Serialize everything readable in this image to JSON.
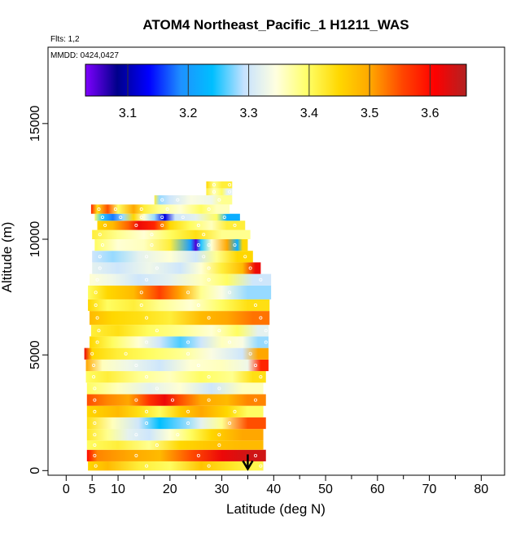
{
  "chart_data": {
    "type": "heatmap",
    "title": "ATOM4 Northeast_Pacific_1 H1211_WAS",
    "flights_note": "Flts: 1,2",
    "mmdd_note": "MMDD: 0424,0427",
    "xlabel": "Latitude (deg N)",
    "ylabel": "Altitude (m)",
    "xlim": [
      -3.5,
      84.5
    ],
    "ylim": [
      -200,
      18300
    ],
    "x_ticks": [
      0,
      5,
      10,
      20,
      30,
      40,
      50,
      60,
      70,
      80
    ],
    "y_ticks": [
      0,
      5000,
      10000,
      15000
    ],
    "colorbar": {
      "range": [
        3.03,
        3.66
      ],
      "ticks": [
        3.1,
        3.2,
        3.3,
        3.4,
        3.5,
        3.6
      ],
      "colors": [
        "#7f00ff",
        "#00008b",
        "#0000ff",
        "#1e90ff",
        "#00bfff",
        "#c6e2ff",
        "#ffffe0",
        "#ffff66",
        "#ffd700",
        "#ffa500",
        "#ff4500",
        "#ff0000",
        "#b22222"
      ]
    },
    "marker": {
      "x": 35,
      "y": 700,
      "label": "arrow-down"
    },
    "rows": [
      {
        "y0": 0,
        "y1": 400,
        "x0": 4.2,
        "x1": 38.0,
        "segs": [
          [
            4.2,
            3.45
          ],
          [
            8,
            3.48
          ],
          [
            14,
            3.42
          ],
          [
            20,
            3.4
          ],
          [
            26,
            3.47
          ],
          [
            32,
            3.43
          ],
          [
            36,
            3.41
          ]
        ]
      },
      {
        "y0": 400,
        "y1": 900,
        "x0": 4.0,
        "x1": 38.5,
        "segs": [
          [
            4.0,
            3.6
          ],
          [
            6,
            3.52
          ],
          [
            12,
            3.5
          ],
          [
            18,
            3.48
          ],
          [
            24,
            3.55
          ],
          [
            30,
            3.62
          ],
          [
            35,
            3.64
          ]
        ]
      },
      {
        "y0": 900,
        "y1": 1300,
        "x0": 4.0,
        "x1": 38.0,
        "segs": [
          [
            4.0,
            3.4
          ],
          [
            10,
            3.42
          ],
          [
            16,
            3.38
          ],
          [
            22,
            3.45
          ],
          [
            28,
            3.47
          ],
          [
            34,
            3.48
          ]
        ]
      },
      {
        "y0": 1300,
        "y1": 1800,
        "x0": 4.0,
        "x1": 38.0,
        "segs": [
          [
            4.0,
            3.43
          ],
          [
            8,
            3.38
          ],
          [
            12,
            3.32
          ],
          [
            16,
            3.3
          ],
          [
            20,
            3.35
          ],
          [
            24,
            3.4
          ],
          [
            28,
            3.45
          ],
          [
            34,
            3.5
          ]
        ]
      },
      {
        "y0": 1800,
        "y1": 2300,
        "x0": 4.0,
        "x1": 38.5,
        "segs": [
          [
            4.0,
            3.44
          ],
          [
            9,
            3.36
          ],
          [
            14,
            3.3
          ],
          [
            18,
            3.24
          ],
          [
            22,
            3.27
          ],
          [
            26,
            3.32
          ],
          [
            30,
            3.38
          ],
          [
            35,
            3.55
          ]
        ]
      },
      {
        "y0": 2300,
        "y1": 2800,
        "x0": 4.0,
        "x1": 38.0,
        "segs": [
          [
            4.0,
            3.45
          ],
          [
            10,
            3.48
          ],
          [
            14,
            3.44
          ],
          [
            18,
            3.4
          ],
          [
            22,
            3.46
          ],
          [
            26,
            3.5
          ],
          [
            31,
            3.45
          ],
          [
            35,
            3.4
          ]
        ]
      },
      {
        "y0": 2800,
        "y1": 3300,
        "x0": 4.0,
        "x1": 38.5,
        "segs": [
          [
            4.0,
            3.55
          ],
          [
            8,
            3.52
          ],
          [
            12,
            3.5
          ],
          [
            16,
            3.57
          ],
          [
            19,
            3.62
          ],
          [
            22,
            3.55
          ],
          [
            26,
            3.5
          ],
          [
            31,
            3.48
          ],
          [
            35,
            3.52
          ]
        ]
      },
      {
        "y0": 3300,
        "y1": 3800,
        "x0": 4.0,
        "x1": 38.0,
        "segs": [
          [
            4.0,
            3.4
          ],
          [
            10,
            3.36
          ],
          [
            16,
            3.32
          ],
          [
            22,
            3.35
          ],
          [
            28,
            3.3
          ],
          [
            34,
            3.36
          ]
        ]
      },
      {
        "y0": 3800,
        "y1": 4300,
        "x0": 3.8,
        "x1": 38.5,
        "segs": [
          [
            3.8,
            3.4
          ],
          [
            8,
            3.42
          ],
          [
            14,
            3.38
          ],
          [
            20,
            3.36
          ],
          [
            26,
            3.4
          ],
          [
            32,
            3.38
          ],
          [
            36,
            3.44
          ]
        ]
      },
      {
        "y0": 4300,
        "y1": 4800,
        "x0": 3.8,
        "x1": 39.0,
        "segs": [
          [
            3.8,
            3.5
          ],
          [
            7,
            3.36
          ],
          [
            12,
            3.33
          ],
          [
            18,
            3.3
          ],
          [
            24,
            3.35
          ],
          [
            30,
            3.36
          ],
          [
            35,
            3.33
          ],
          [
            37.5,
            3.58
          ]
        ]
      },
      {
        "y0": 4800,
        "y1": 5300,
        "x0": 3.5,
        "x1": 39.0,
        "segs": [
          [
            3.5,
            3.62
          ],
          [
            5,
            3.45
          ],
          [
            10,
            3.42
          ],
          [
            16,
            3.4
          ],
          [
            22,
            3.38
          ],
          [
            28,
            3.34
          ],
          [
            34,
            3.3
          ],
          [
            37,
            3.5
          ]
        ]
      },
      {
        "y0": 5300,
        "y1": 5800,
        "x0": 4.5,
        "x1": 39.0,
        "segs": [
          [
            4.5,
            3.45
          ],
          [
            9,
            3.4
          ],
          [
            14,
            3.35
          ],
          [
            18,
            3.3
          ],
          [
            22,
            3.26
          ],
          [
            26,
            3.3
          ],
          [
            30,
            3.36
          ],
          [
            34,
            3.34
          ],
          [
            37,
            3.28
          ]
        ]
      },
      {
        "y0": 5800,
        "y1": 6300,
        "x0": 4.8,
        "x1": 39.0,
        "segs": [
          [
            4.8,
            3.42
          ],
          [
            10,
            3.44
          ],
          [
            16,
            3.4
          ],
          [
            22,
            3.38
          ],
          [
            28,
            3.35
          ],
          [
            33,
            3.4
          ],
          [
            37,
            3.32
          ]
        ]
      },
      {
        "y0": 6300,
        "y1": 6900,
        "x0": 4.5,
        "x1": 39.2,
        "segs": [
          [
            4.5,
            3.48
          ],
          [
            9,
            3.45
          ],
          [
            14,
            3.44
          ],
          [
            20,
            3.42
          ],
          [
            26,
            3.48
          ],
          [
            31,
            3.5
          ],
          [
            36,
            3.53
          ]
        ]
      },
      {
        "y0": 6900,
        "y1": 7400,
        "x0": 4.2,
        "x1": 39.2,
        "segs": [
          [
            4.2,
            3.45
          ],
          [
            8,
            3.4
          ],
          [
            13,
            3.42
          ],
          [
            18,
            3.38
          ],
          [
            24,
            3.35
          ],
          [
            30,
            3.4
          ],
          [
            35,
            3.44
          ]
        ]
      },
      {
        "y0": 7400,
        "y1": 8000,
        "x0": 4.2,
        "x1": 39.5,
        "segs": [
          [
            4.2,
            3.4
          ],
          [
            8,
            3.45
          ],
          [
            13,
            3.48
          ],
          [
            18,
            3.56
          ],
          [
            22,
            3.5
          ],
          [
            26,
            3.38
          ],
          [
            30,
            3.34
          ],
          [
            35,
            3.28
          ]
        ]
      },
      {
        "y0": 8000,
        "y1": 8500,
        "x0": 4.5,
        "x1": 39.5,
        "segs": [
          [
            4.5,
            3.35
          ],
          [
            9,
            3.33
          ],
          [
            14,
            3.3
          ],
          [
            20,
            3.32
          ],
          [
            26,
            3.36
          ],
          [
            31,
            3.4
          ],
          [
            36,
            3.3
          ]
        ]
      },
      {
        "y0": 8500,
        "y1": 9000,
        "x0": 5.0,
        "x1": 37.5,
        "segs": [
          [
            5.0,
            3.32
          ],
          [
            10,
            3.3
          ],
          [
            16,
            3.33
          ],
          [
            22,
            3.3
          ],
          [
            26,
            3.35
          ],
          [
            30,
            3.42
          ],
          [
            34,
            3.48
          ],
          [
            36.5,
            3.62
          ]
        ]
      },
      {
        "y0": 9000,
        "y1": 9500,
        "x0": 5.0,
        "x1": 36.0,
        "segs": [
          [
            5.0,
            3.3
          ],
          [
            9,
            3.28
          ],
          [
            14,
            3.32
          ],
          [
            20,
            3.35
          ],
          [
            25,
            3.3
          ],
          [
            29,
            3.38
          ],
          [
            33,
            3.45
          ]
        ]
      },
      {
        "y0": 9500,
        "y1": 10000,
        "x0": 5.5,
        "x1": 35.0,
        "segs": [
          [
            5.5,
            3.4
          ],
          [
            10,
            3.35
          ],
          [
            15,
            3.36
          ],
          [
            20,
            3.42
          ],
          [
            24,
            3.2
          ],
          [
            25,
            3.05
          ],
          [
            26,
            3.25
          ],
          [
            28,
            3.35
          ],
          [
            31,
            3.5
          ],
          [
            33,
            3.22
          ],
          [
            34,
            3.45
          ]
        ]
      },
      {
        "y0": 10000,
        "y1": 10400,
        "x0": 5.0,
        "x1": 35.5,
        "segs": [
          [
            5.0,
            3.42
          ],
          [
            10,
            3.38
          ],
          [
            15,
            3.35
          ],
          [
            20,
            3.4
          ],
          [
            25,
            3.44
          ],
          [
            30,
            3.38
          ]
        ]
      },
      {
        "y0": 10400,
        "y1": 10800,
        "x0": 6.0,
        "x1": 34.5,
        "segs": [
          [
            6.0,
            3.45
          ],
          [
            9,
            3.48
          ],
          [
            12,
            3.54
          ],
          [
            14,
            3.62
          ],
          [
            17,
            3.58
          ],
          [
            20,
            3.45
          ],
          [
            24,
            3.4
          ],
          [
            28,
            3.36
          ],
          [
            31,
            3.42
          ]
        ]
      },
      {
        "y0": 10800,
        "y1": 11100,
        "x0": 5.5,
        "x1": 33.5,
        "segs": [
          [
            5.5,
            3.4
          ],
          [
            7,
            3.25
          ],
          [
            9,
            3.18
          ],
          [
            11,
            3.28
          ],
          [
            13,
            3.45
          ],
          [
            15,
            3.35
          ],
          [
            17,
            3.28
          ],
          [
            19,
            3.12
          ],
          [
            21,
            3.3
          ],
          [
            25,
            3.32
          ],
          [
            29,
            3.4
          ],
          [
            31,
            3.22
          ]
        ]
      },
      {
        "y0": 11100,
        "y1": 11500,
        "x0": 4.8,
        "x1": 31.5,
        "segs": [
          [
            4.8,
            3.58
          ],
          [
            6,
            3.44
          ],
          [
            8,
            3.55
          ],
          [
            10,
            3.4
          ],
          [
            13,
            3.5
          ],
          [
            15,
            3.42
          ],
          [
            18,
            3.38
          ],
          [
            22,
            3.35
          ],
          [
            26,
            3.4
          ],
          [
            29,
            3.36
          ]
        ]
      },
      {
        "y0": 11500,
        "y1": 11900,
        "x0": 17.0,
        "x1": 32.0,
        "segs": [
          [
            17.0,
            3.42
          ],
          [
            18,
            3.28
          ],
          [
            20,
            3.3
          ],
          [
            24,
            3.34
          ],
          [
            28,
            3.33
          ],
          [
            30,
            3.38
          ]
        ]
      },
      {
        "y0": 11900,
        "y1": 12200,
        "x0": 27.0,
        "x1": 32.0,
        "segs": [
          [
            27.0,
            3.42
          ],
          [
            28.5,
            3.36
          ],
          [
            30,
            3.4
          ],
          [
            31,
            3.32
          ]
        ]
      },
      {
        "y0": 12200,
        "y1": 12500,
        "x0": 27.0,
        "x1": 32.0,
        "segs": [
          [
            27.0,
            3.45
          ],
          [
            28.5,
            3.38
          ],
          [
            30,
            3.42
          ]
        ]
      }
    ]
  }
}
